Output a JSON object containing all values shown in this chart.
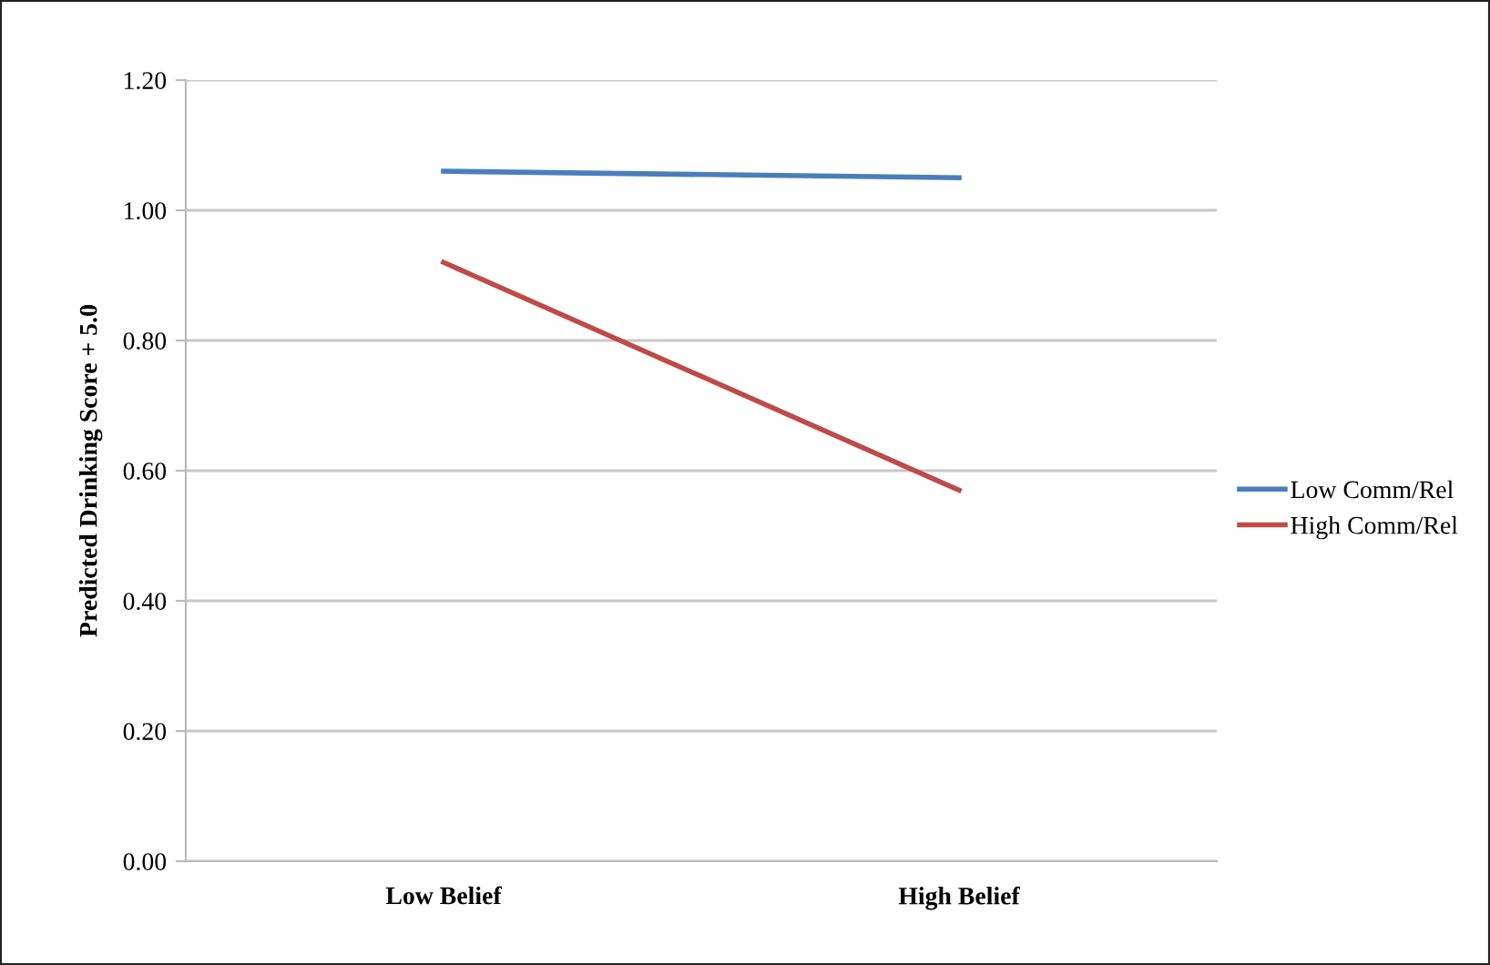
{
  "chart_data": {
    "type": "line",
    "ylabel": "Predicted Drinking Score + 5.0",
    "categories": [
      "Low Belief",
      "High Belief"
    ],
    "series": [
      {
        "name": "Low Comm/Rel",
        "color": "#4a7ebb",
        "values": [
          1.06,
          1.05
        ]
      },
      {
        "name": "High Comm/Rel",
        "color": "#be4b48",
        "values": [
          0.92,
          0.57
        ]
      }
    ],
    "ylim": [
      0,
      1.2
    ],
    "yticks": [
      {
        "value": 0,
        "label": "0.00"
      },
      {
        "value": 0.2,
        "label": "0.20"
      },
      {
        "value": 0.4,
        "label": "0.40"
      },
      {
        "value": 0.6,
        "label": "0.60"
      },
      {
        "value": 0.8,
        "label": "0.80"
      },
      {
        "value": 1.0,
        "label": "1.00"
      },
      {
        "value": 1.2,
        "label": "1.20"
      }
    ],
    "grid": "y",
    "legend": "right",
    "marker": "none",
    "line_style": "solid"
  }
}
